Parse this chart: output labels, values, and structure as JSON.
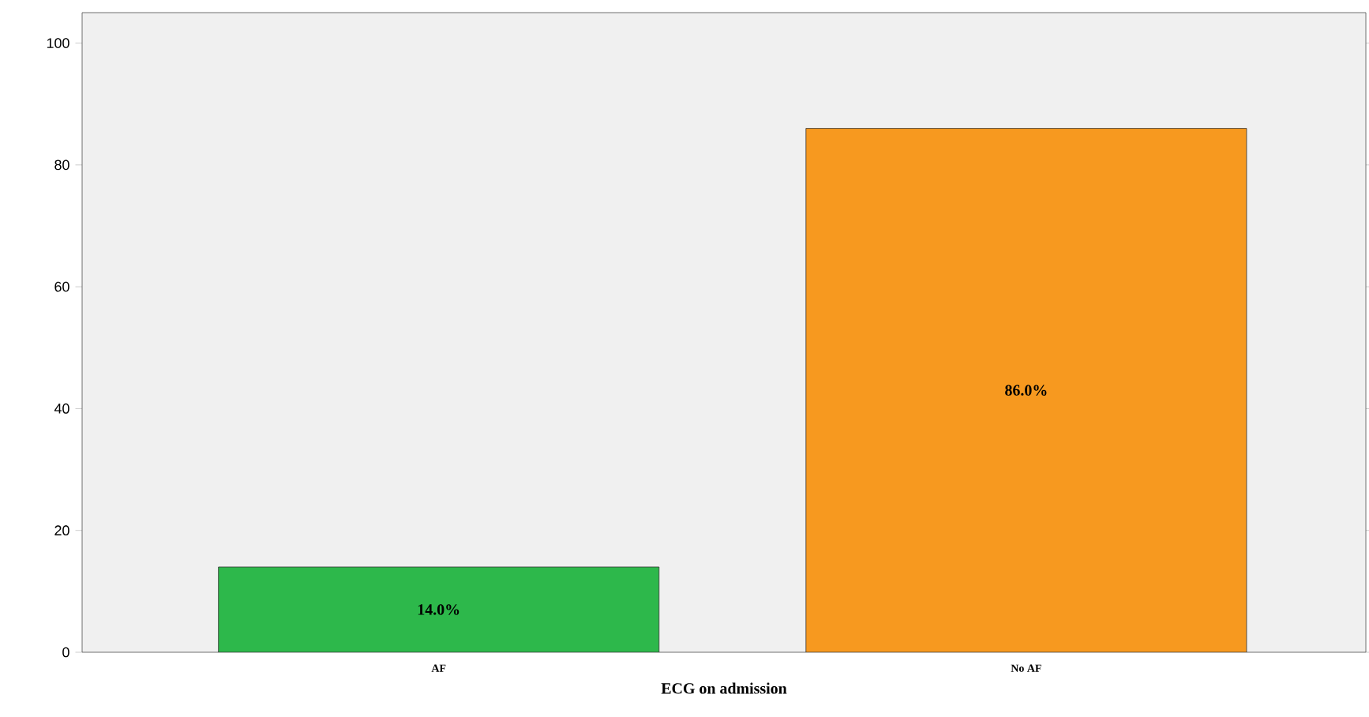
{
  "chart_data": {
    "type": "bar",
    "xlabel": "ECG on admission",
    "categories": [
      "AF",
      "No AF"
    ],
    "values": [
      14.0,
      86.0
    ],
    "colors": [
      "#2db84b",
      "#f7991f"
    ],
    "value_labels": [
      "14.0%",
      "86.0%"
    ],
    "ylim": [
      0,
      105
    ],
    "yticks": [
      0,
      20,
      40,
      60,
      80,
      100
    ],
    "grid": false
  }
}
